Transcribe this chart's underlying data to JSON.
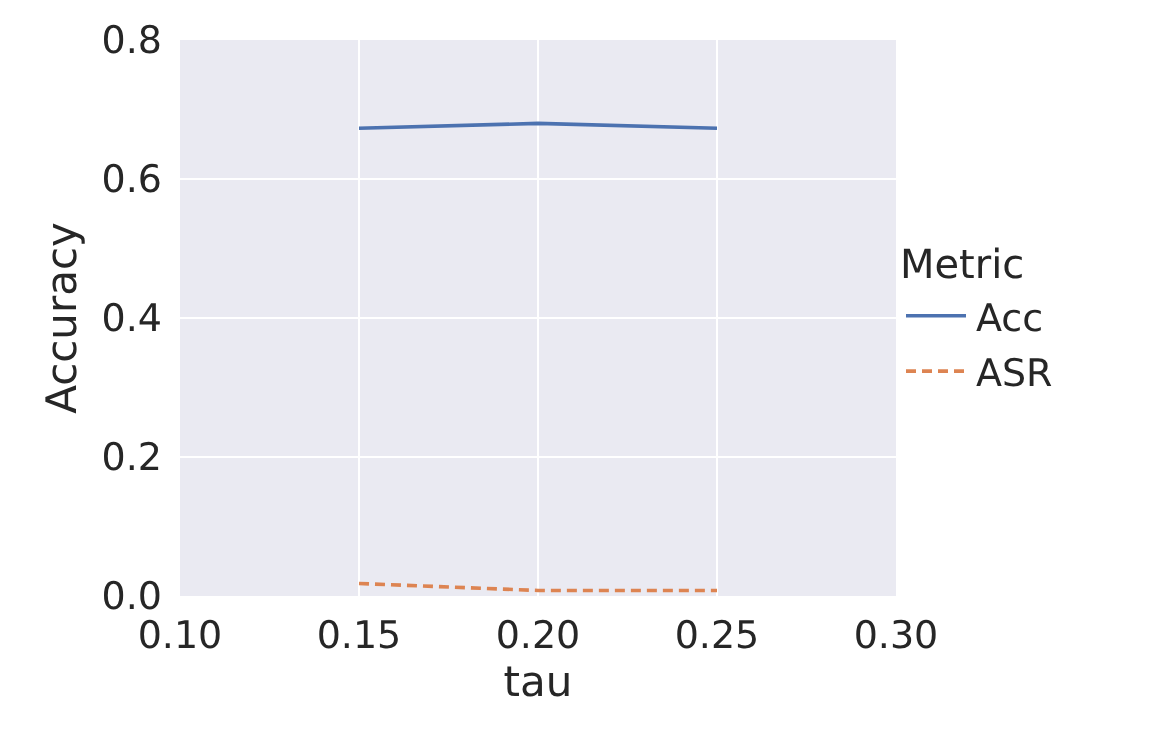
{
  "chart_data": {
    "type": "line",
    "xlabel": "tau",
    "ylabel": "Accuracy",
    "legend_title": "Metric",
    "x": [
      0.15,
      0.2,
      0.25
    ],
    "series": [
      {
        "name": "Acc",
        "color": "#4c72b0",
        "values": [
          0.673,
          0.68,
          0.673
        ],
        "line_style": "solid"
      },
      {
        "name": "ASR",
        "color": "#dd8452",
        "values": [
          0.018,
          0.008,
          0.008
        ],
        "line_style": "dashed"
      }
    ],
    "xlim": [
      0.1,
      0.3
    ],
    "xticks": [
      {
        "value": 0.1,
        "label": "0.10"
      },
      {
        "value": 0.15,
        "label": "0.15"
      },
      {
        "value": 0.2,
        "label": "0.20"
      },
      {
        "value": 0.25,
        "label": "0.25"
      },
      {
        "value": 0.3,
        "label": "0.30"
      }
    ],
    "ylim": [
      0,
      0.8
    ],
    "yticks": [
      {
        "value": 0,
        "label": "0.0"
      },
      {
        "value": 0.2,
        "label": "0.2"
      },
      {
        "value": 0.4,
        "label": "0.4"
      },
      {
        "value": 0.6,
        "label": "0.6"
      },
      {
        "value": 0.8,
        "label": "0.8"
      }
    ],
    "grid": true,
    "legend": "right"
  }
}
